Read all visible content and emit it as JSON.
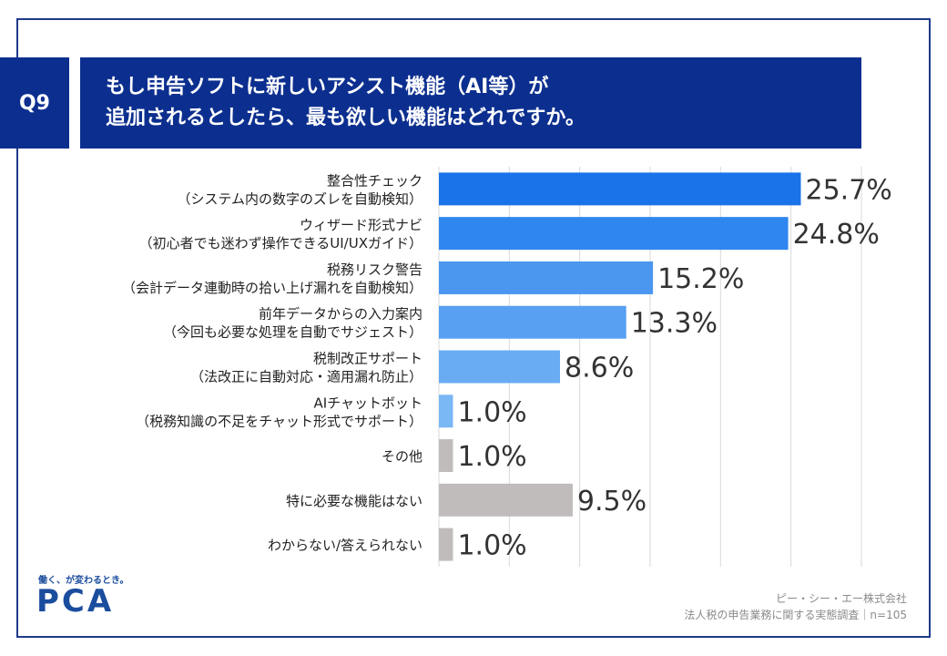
{
  "header": {
    "q_label": "Q9",
    "title_line1": "もし申告ソフトに新しいアシスト機能（AI等）が",
    "title_line2": "追加されるとしたら、最も欲しい機能はどれですか。"
  },
  "footer": {
    "logo_tagline": "働く、が変わるとき。",
    "logo": "PCA",
    "source_line1": "ピー・シー・エー株式会社",
    "source_line2": "法人税の申告業務に関する実態調査｜n=105"
  },
  "colors": {
    "frame": "#1f3a8a",
    "header_bg": "#0c2f8f",
    "bar_gradient": [
      "#1a73e8",
      "#2f86ee",
      "#4b97f0",
      "#57a0f2",
      "#6aacf4",
      "#7ab7f5"
    ],
    "bar_gray": "#c1bcbc",
    "grid": "#d9d9d9"
  },
  "chart_data": {
    "type": "bar",
    "orientation": "horizontal",
    "xlim": [
      0,
      30
    ],
    "grid": true,
    "categories": [
      [
        "整合性チェック",
        "（システム内の数字のズレを自動検知）"
      ],
      [
        "ウィザード形式ナビ",
        "（初心者でも迷わず操作できるUI/UXガイド）"
      ],
      [
        "税務リスク警告",
        "（会計データ連動時の拾い上げ漏れを自動検知）"
      ],
      [
        "前年データからの入力案内",
        "（今回も必要な処理を自動でサジェスト）"
      ],
      [
        "税制改正サポート",
        "（法改正に自動対応・適用漏れ防止）"
      ],
      [
        "AIチャットボット",
        "（税務知識の不足をチャット形式でサポート）"
      ],
      [
        "その他"
      ],
      [
        "特に必要な機能はない"
      ],
      [
        "わからない/答えられない"
      ]
    ],
    "values": [
      25.7,
      24.8,
      15.2,
      13.3,
      8.6,
      1.0,
      1.0,
      9.5,
      1.0
    ],
    "labels": [
      "25.7%",
      "24.8%",
      "15.2%",
      "13.3%",
      "8.6%",
      "1.0%",
      "1.0%",
      "9.5%",
      "1.0%"
    ],
    "bar_colors": [
      "#1a73e8",
      "#2f86ee",
      "#4b97f0",
      "#57a0f2",
      "#6aacf4",
      "#7ab7f5",
      "#c1bcbc",
      "#c1bcbc",
      "#c1bcbc"
    ]
  }
}
